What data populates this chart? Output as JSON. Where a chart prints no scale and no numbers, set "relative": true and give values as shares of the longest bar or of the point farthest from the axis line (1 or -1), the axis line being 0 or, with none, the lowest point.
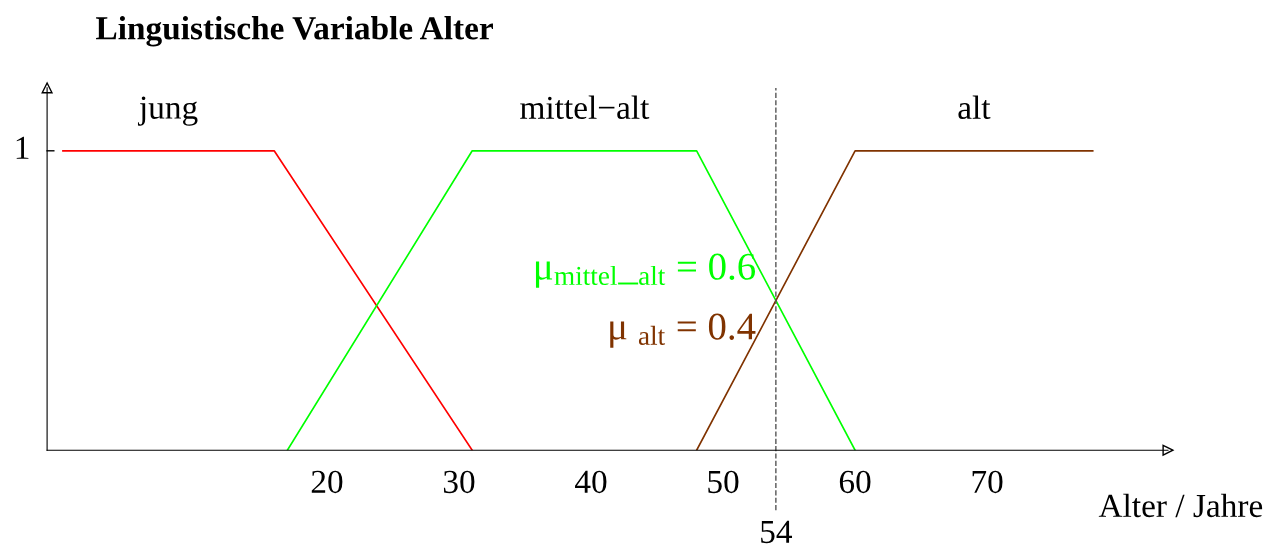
{
  "chart_data": {
    "type": "line",
    "title": "Linguistische Variable Alter",
    "xlabel": "Alter / Jahre",
    "series": [
      {
        "name": "jung",
        "color": "#ff0000",
        "x": [
          0,
          16,
          31
        ],
        "values": [
          1,
          1,
          0
        ]
      },
      {
        "name": "mittel−alt",
        "color": "#00ff00",
        "x": [
          17,
          31,
          48,
          60
        ],
        "values": [
          0,
          1,
          1,
          0
        ]
      },
      {
        "name": "alt",
        "color": "#803300",
        "x": [
          48,
          60,
          78
        ],
        "values": [
          0,
          1,
          1
        ]
      }
    ],
    "xlim": [
      -1.2,
      83.7
    ],
    "xticks": [
      20,
      30,
      40,
      50,
      60,
      70
    ],
    "relative": true,
    "ref_lines": [
      {
        "axis": "x",
        "value": 54,
        "label": "54",
        "color": "#555555",
        "line_style": "dashed"
      }
    ],
    "annotations": [
      "1",
      {
        "text": "μ$_{mittel}$_$_{alt}$ = 0.6",
        "x": 54,
        "y": 0.6
      },
      {
        "text": "μ $_{alt}$ = 0.4",
        "x": 54,
        "y": 0.4
      }
    ],
    "grid": false,
    "legend": false,
    "marker": "none",
    "line_style": "solid"
  }
}
